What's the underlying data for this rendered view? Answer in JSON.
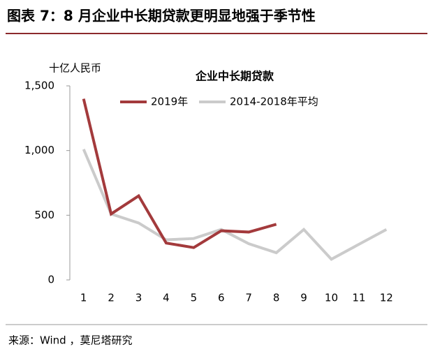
{
  "chart_data": {
    "type": "line",
    "title": "图表 7：8 月企业中长期贷款更明显地强于季节性",
    "subtitle": "企业中长期贷款",
    "y_axis_label": "十亿人民币",
    "source": "来源：Wind ，莫尼塔研究",
    "categories": [
      "1",
      "2",
      "3",
      "4",
      "5",
      "6",
      "7",
      "8",
      "9",
      "10",
      "11",
      "12"
    ],
    "series": [
      {
        "name": "2019年",
        "color": "#a33a3c",
        "values": [
          1400,
          510,
          650,
          285,
          250,
          380,
          370,
          430,
          null,
          null,
          null,
          null
        ]
      },
      {
        "name": "2014-2018年平均",
        "color": "#cbcbcb",
        "values": [
          1010,
          510,
          440,
          310,
          320,
          390,
          280,
          210,
          390,
          160,
          275,
          390
        ]
      }
    ],
    "ylim": [
      0,
      1500
    ],
    "yticks": [
      0,
      500,
      {
        "value": 1000,
        "label": "1,000"
      },
      {
        "value": 1500,
        "label": "1,500"
      }
    ],
    "grid": false
  }
}
